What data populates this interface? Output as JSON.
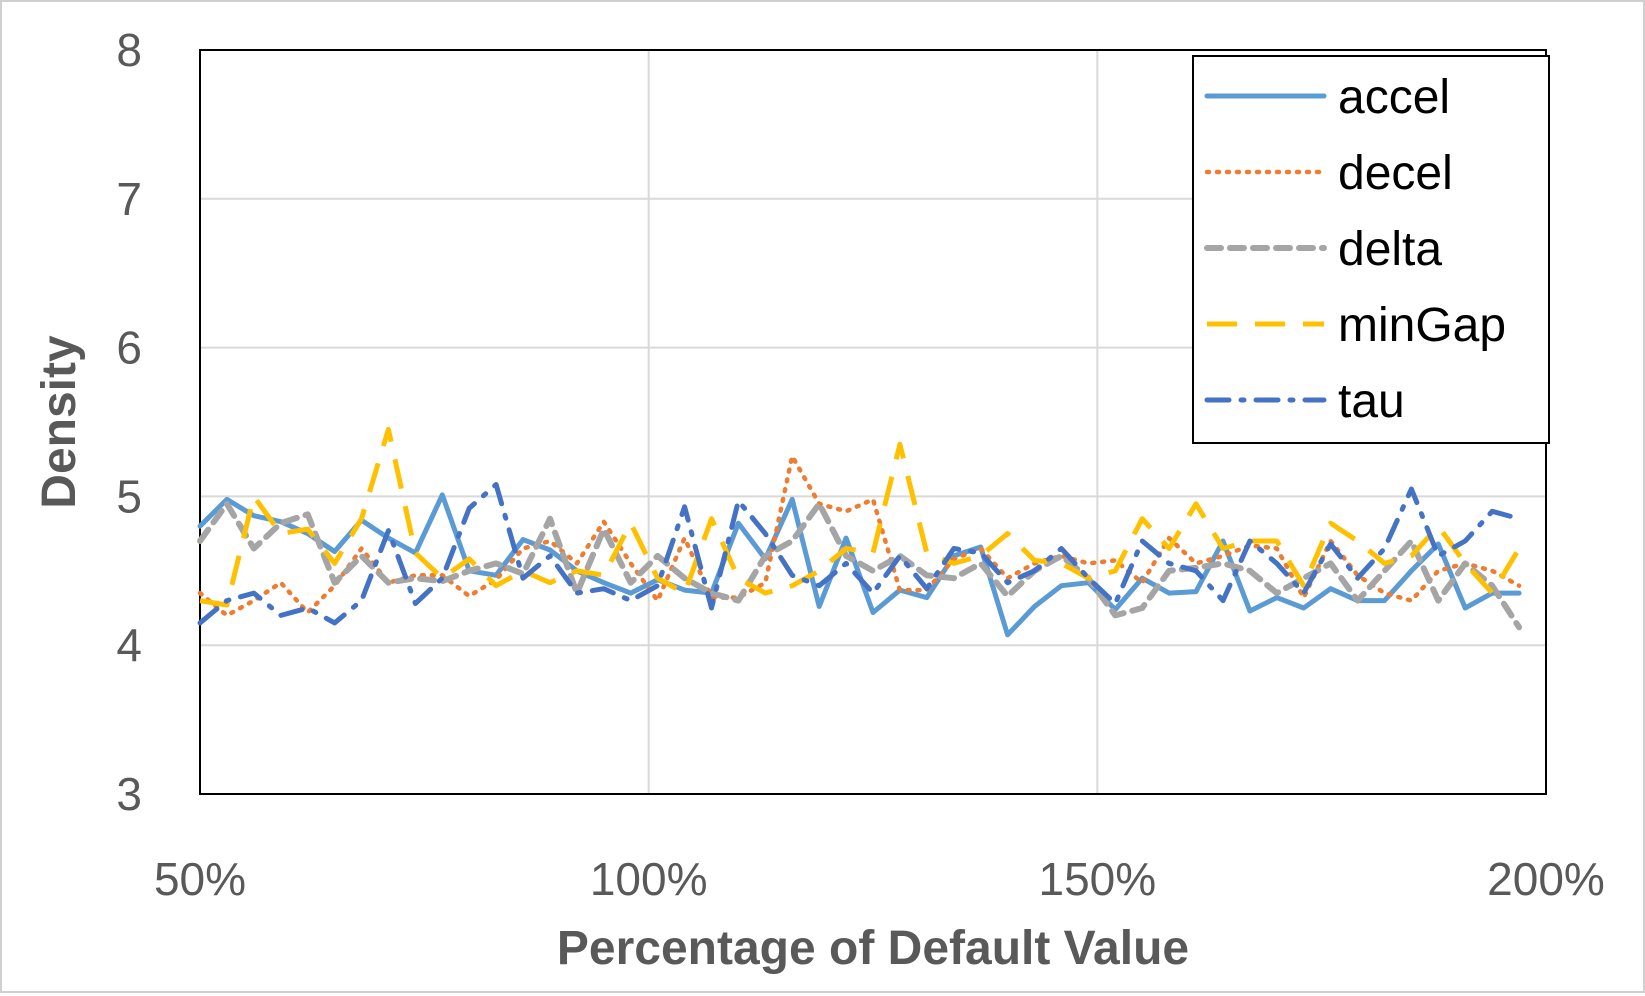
{
  "chart_data": {
    "type": "line",
    "title": "",
    "xlabel": "Percentage of Default Value",
    "ylabel": "Density",
    "xlim": [
      50,
      200
    ],
    "ylim": [
      3,
      8
    ],
    "x_ticks": [
      "50%",
      "100%",
      "150%",
      "200%"
    ],
    "x_tick_values": [
      50,
      100,
      150,
      200
    ],
    "y_ticks": [
      "3",
      "4",
      "5",
      "6",
      "7",
      "8"
    ],
    "y_tick_values": [
      3,
      4,
      5,
      6,
      7,
      8
    ],
    "grid": true,
    "legend_position": "top-right",
    "x": [
      50,
      53,
      56,
      59,
      62,
      65,
      68,
      71,
      74,
      77,
      80,
      83,
      86,
      89,
      92,
      95,
      98,
      101,
      104,
      107,
      110,
      113,
      116,
      119,
      122,
      125,
      128,
      131,
      134,
      137,
      140,
      143,
      146,
      149,
      152,
      155,
      158,
      161,
      164,
      167,
      170,
      173,
      176,
      179,
      182,
      185,
      188,
      191,
      194,
      197
    ],
    "series": [
      {
        "name": "accel",
        "color": "#5b9bd5",
        "dash": "solid",
        "values": [
          4.8,
          4.98,
          4.87,
          4.83,
          4.75,
          4.63,
          4.84,
          4.72,
          4.62,
          5.01,
          4.5,
          4.47,
          4.71,
          4.64,
          4.5,
          4.42,
          4.35,
          4.44,
          4.37,
          4.35,
          4.82,
          4.58,
          4.98,
          4.26,
          4.72,
          4.22,
          4.37,
          4.32,
          4.6,
          4.66,
          4.07,
          4.26,
          4.4,
          4.42,
          4.24,
          4.45,
          4.35,
          4.36,
          4.7,
          4.23,
          4.32,
          4.25,
          4.38,
          4.3,
          4.3,
          4.5,
          4.68,
          4.25,
          4.35,
          4.35
        ]
      },
      {
        "name": "decel",
        "color": "#ed7d31",
        "dash": "dotted",
        "values": [
          4.35,
          4.2,
          4.3,
          4.42,
          4.22,
          4.4,
          4.65,
          4.42,
          4.47,
          4.47,
          4.33,
          4.44,
          4.65,
          4.7,
          4.55,
          4.83,
          4.55,
          4.3,
          4.72,
          4.32,
          4.32,
          4.42,
          5.27,
          4.95,
          4.9,
          4.98,
          4.37,
          4.37,
          4.58,
          4.65,
          4.45,
          4.55,
          4.6,
          4.55,
          4.57,
          4.42,
          4.72,
          4.55,
          4.6,
          4.67,
          4.65,
          4.32,
          4.7,
          4.47,
          4.35,
          4.3,
          4.5,
          4.55,
          4.5,
          4.4
        ]
      },
      {
        "name": "delta",
        "color": "#a5a5a5",
        "dash": "dashed",
        "values": [
          4.7,
          4.95,
          4.65,
          4.82,
          4.88,
          4.42,
          4.6,
          4.42,
          4.45,
          4.43,
          4.5,
          4.55,
          4.48,
          4.85,
          4.35,
          4.78,
          4.42,
          4.6,
          4.45,
          4.35,
          4.3,
          4.6,
          4.7,
          4.95,
          4.6,
          4.5,
          4.6,
          4.47,
          4.45,
          4.55,
          4.33,
          4.5,
          4.6,
          4.45,
          4.2,
          4.25,
          4.5,
          4.52,
          4.55,
          4.5,
          4.35,
          4.45,
          4.55,
          4.3,
          4.5,
          4.7,
          4.3,
          4.55,
          4.4,
          4.12
        ]
      },
      {
        "name": "minGap",
        "color": "#ffc000",
        "dash": "long-dash",
        "values": [
          4.3,
          4.27,
          5.0,
          4.75,
          4.78,
          4.55,
          4.85,
          5.45,
          4.62,
          4.45,
          4.58,
          4.4,
          4.5,
          4.42,
          4.5,
          4.47,
          4.82,
          4.45,
          4.35,
          4.85,
          4.45,
          4.35,
          4.4,
          4.5,
          4.65,
          4.62,
          5.35,
          4.62,
          4.55,
          4.6,
          4.75,
          4.57,
          4.55,
          4.45,
          4.5,
          4.85,
          4.65,
          4.95,
          4.65,
          4.7,
          4.7,
          4.4,
          4.82,
          4.7,
          4.55,
          4.6,
          4.8,
          4.55,
          4.35,
          4.65
        ]
      },
      {
        "name": "tau",
        "color": "#4472c4",
        "dash": "dash-dot",
        "values": [
          4.15,
          4.3,
          4.35,
          4.2,
          4.25,
          4.15,
          4.3,
          4.77,
          4.28,
          4.45,
          4.92,
          5.08,
          4.45,
          4.6,
          4.35,
          4.38,
          4.3,
          4.4,
          4.93,
          4.25,
          4.97,
          4.75,
          4.47,
          4.4,
          4.55,
          4.35,
          4.6,
          4.38,
          4.65,
          4.62,
          4.42,
          4.5,
          4.65,
          4.45,
          4.28,
          4.7,
          4.55,
          4.5,
          4.3,
          4.7,
          4.55,
          4.35,
          4.68,
          4.45,
          4.65,
          5.05,
          4.6,
          4.7,
          4.9,
          4.85
        ]
      }
    ]
  }
}
